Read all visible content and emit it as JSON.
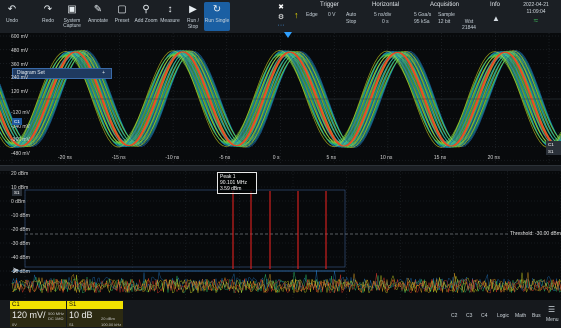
{
  "toolbar": {
    "buttons": [
      {
        "label": "Undo",
        "icon": "undo-icon"
      },
      {
        "label": "Redo",
        "icon": "redo-icon"
      },
      {
        "label": "System",
        "label2": "Capture",
        "icon": "camera-icon"
      },
      {
        "label": "Annotate",
        "icon": "pen-icon"
      },
      {
        "label": "Preset",
        "icon": "preset-icon"
      },
      {
        "label": "Add Zoom",
        "icon": "zoom-icon"
      },
      {
        "label": "Measure",
        "icon": "measure-icon"
      },
      {
        "label": "Run / Stop",
        "icon": "run-icon"
      },
      {
        "label": "Run Single",
        "icon": "single-icon"
      }
    ],
    "trigger": {
      "title": "Trigger",
      "type": "Edge",
      "level": "0 V",
      "mode": "Auto",
      "state": "Stop"
    },
    "horizontal": {
      "title": "Horizontal",
      "scale": "5 ns/div",
      "position": "0 s"
    },
    "acquisition": {
      "title": "Acquisition",
      "rate": "5 Gsa/s",
      "points": "95 kSa",
      "mode": "Sample",
      "bits": "12 bit",
      "count": "Wst 21844"
    },
    "info": {
      "title": "Info"
    },
    "date": "2022-04-21",
    "time": "11:09:04"
  },
  "upper": {
    "tab_label": "Diagram Set",
    "tab_add": "+",
    "y_labels": [
      "600 mV",
      "480 mV",
      "360 mV",
      "240 mV",
      "120 mV",
      "-120 mV",
      "-240 mV",
      "-360 mV",
      "-480 mV",
      "-600 mV"
    ],
    "x_labels": [
      "-20 ns",
      "-15 ns",
      "-10 ns",
      "-5 ns",
      "0 s",
      "5 ns",
      "10 ns",
      "15 ns",
      "20 ns"
    ],
    "marker_c1": "C1",
    "marker_right": "C1 S1"
  },
  "lower": {
    "y_labels": [
      "20 dBm",
      "10 dBm",
      "0 dBm",
      "-10 dBm",
      "-20 dBm",
      "-30 dBm",
      "-40 dBm",
      "-50 dBm"
    ],
    "marker_s1": "S1",
    "peak_title": "Peak 1",
    "peak_freq": "90.101 MHz",
    "peak_level": "3.59 dBm",
    "threshold": "Threshold: -30.00 dBm"
  },
  "bottom": {
    "c1": {
      "label": "C1",
      "scale": "120 mV/",
      "bw": "500 MHz",
      "offset": "0V",
      "coupling": "DC 1MΩ"
    },
    "s1": {
      "label": "S1",
      "scale": "10 dB",
      "ref": "20 dBm",
      "rbw": "100.00 kHz",
      "sub": "S1"
    },
    "buttons": [
      "C2",
      "C3",
      "C4",
      "Logic",
      "Math",
      "Bus",
      "Menu"
    ]
  },
  "colors": {
    "c1_yellow": "#f2e200",
    "accent_blue": "#1a5fa3",
    "peak_red": "#e02020"
  }
}
